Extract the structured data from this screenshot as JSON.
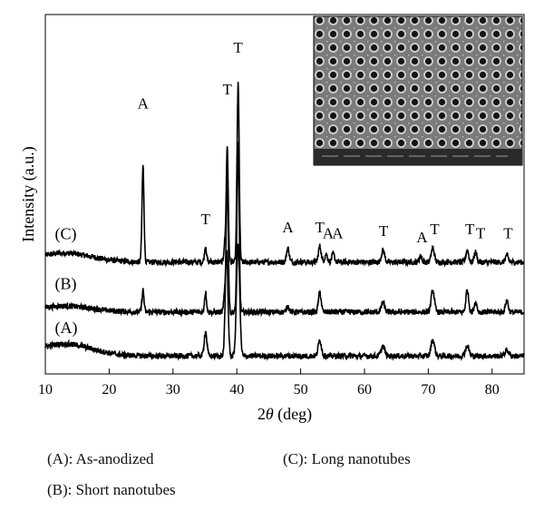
{
  "chart_data": {
    "type": "line",
    "xlabel_prefix": "2",
    "xlabel_theta": "θ",
    "xlabel_suffix": " (deg)",
    "ylabel": "Intensity (a.u.)",
    "xlim": [
      10,
      85
    ],
    "xticks": [
      10,
      20,
      30,
      40,
      50,
      60,
      70,
      80
    ],
    "grid": false,
    "inset": "SEM image of nanotube array (top-right)",
    "series": [
      {
        "name": "(C)",
        "baseline": 5.6,
        "hump": 0.45,
        "peaks": [
          {
            "x": 25.3,
            "h": 4.8,
            "w": 0.22
          },
          {
            "x": 35.1,
            "h": 0.8,
            "w": 0.22
          },
          {
            "x": 38.1,
            "h": 0.9,
            "w": 0.2
          },
          {
            "x": 38.5,
            "h": 5.8,
            "w": 0.22
          },
          {
            "x": 40.2,
            "h": 8.9,
            "w": 0.24
          },
          {
            "x": 48.0,
            "h": 0.7,
            "w": 0.3
          },
          {
            "x": 53.0,
            "h": 0.8,
            "w": 0.3
          },
          {
            "x": 54.0,
            "h": 0.4,
            "w": 0.3
          },
          {
            "x": 55.1,
            "h": 0.4,
            "w": 0.3
          },
          {
            "x": 62.9,
            "h": 0.6,
            "w": 0.35
          },
          {
            "x": 68.8,
            "h": 0.3,
            "w": 0.3
          },
          {
            "x": 70.7,
            "h": 0.7,
            "w": 0.35
          },
          {
            "x": 76.1,
            "h": 0.6,
            "w": 0.3
          },
          {
            "x": 77.4,
            "h": 0.5,
            "w": 0.3
          },
          {
            "x": 82.3,
            "h": 0.35,
            "w": 0.3
          }
        ]
      },
      {
        "name": "(B)",
        "baseline": 3.1,
        "hump": 0.3,
        "peaks": [
          {
            "x": 25.3,
            "h": 1.1,
            "w": 0.22
          },
          {
            "x": 35.1,
            "h": 1.0,
            "w": 0.22
          },
          {
            "x": 38.1,
            "h": 1.0,
            "w": 0.2
          },
          {
            "x": 38.5,
            "h": 7.0,
            "w": 0.22
          },
          {
            "x": 40.2,
            "h": 8.4,
            "w": 0.24
          },
          {
            "x": 48.0,
            "h": 0.3,
            "w": 0.3
          },
          {
            "x": 53.0,
            "h": 1.0,
            "w": 0.3
          },
          {
            "x": 62.9,
            "h": 0.5,
            "w": 0.35
          },
          {
            "x": 70.7,
            "h": 1.1,
            "w": 0.35
          },
          {
            "x": 76.1,
            "h": 1.1,
            "w": 0.3
          },
          {
            "x": 77.4,
            "h": 0.5,
            "w": 0.3
          },
          {
            "x": 82.3,
            "h": 0.6,
            "w": 0.3
          }
        ]
      },
      {
        "name": "(A)",
        "baseline": 0.9,
        "hump": 0.6,
        "peaks": [
          {
            "x": 35.1,
            "h": 1.2,
            "w": 0.3
          },
          {
            "x": 38.4,
            "h": 5.3,
            "w": 0.3
          },
          {
            "x": 40.2,
            "h": 5.6,
            "w": 0.35
          },
          {
            "x": 53.0,
            "h": 0.8,
            "w": 0.35
          },
          {
            "x": 62.9,
            "h": 0.5,
            "w": 0.4
          },
          {
            "x": 70.7,
            "h": 0.8,
            "w": 0.4
          },
          {
            "x": 76.1,
            "h": 0.5,
            "w": 0.4
          },
          {
            "x": 82.3,
            "h": 0.3,
            "w": 0.4
          }
        ]
      }
    ],
    "peak_labels": [
      {
        "text": "A",
        "x": 25.3,
        "y": 13.3
      },
      {
        "text": "T",
        "x": 35.1,
        "y": 7.5
      },
      {
        "text": "T",
        "x": 38.5,
        "y": 14.0
      },
      {
        "text": "T",
        "x": 40.2,
        "y": 16.1
      },
      {
        "text": "A",
        "x": 48.0,
        "y": 7.1
      },
      {
        "text": "T",
        "x": 53.0,
        "y": 7.1
      },
      {
        "text": "A",
        "x": 54.3,
        "y": 6.8
      },
      {
        "text": "A",
        "x": 55.8,
        "y": 6.8
      },
      {
        "text": "T",
        "x": 63.0,
        "y": 6.9
      },
      {
        "text": "A",
        "x": 69.0,
        "y": 6.6
      },
      {
        "text": "T",
        "x": 71.0,
        "y": 7.0
      },
      {
        "text": "T",
        "x": 76.5,
        "y": 7.0
      },
      {
        "text": "T",
        "x": 78.2,
        "y": 6.8
      },
      {
        "text": "T",
        "x": 82.5,
        "y": 6.8
      }
    ]
  },
  "captions": {
    "a": "(A): As-anodized",
    "b": "(B): Short nanotubes",
    "c": "(C): Long nanotubes"
  }
}
